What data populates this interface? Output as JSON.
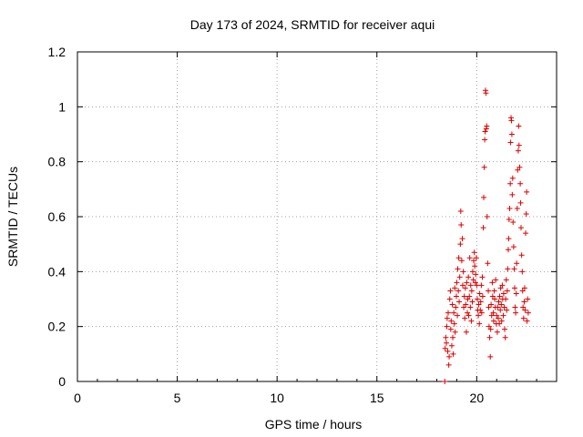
{
  "chart_data": {
    "type": "scatter",
    "title": "Day 173 of 2024, SRMTID for receiver aqui",
    "xlabel": "GPS time / hours",
    "ylabel": "SRMTID / TECUs",
    "xlim": [
      0,
      24
    ],
    "ylim": [
      0,
      1.2
    ],
    "xticks": [
      0,
      5,
      10,
      15,
      20
    ],
    "xtick_labels": [
      "0",
      "5",
      "10",
      "15",
      "20"
    ],
    "yticks": [
      0,
      0.2,
      0.4,
      0.6,
      0.8,
      1.0,
      1.2
    ],
    "ytick_labels": [
      "0",
      "0.2",
      "0.4",
      "0.6",
      "0.8",
      "1",
      "1.2"
    ],
    "grid": true,
    "marker": "plus",
    "color": "#dd0000",
    "series": [
      {
        "name": "SRMTID",
        "points": [
          [
            18.4,
            0.0
          ],
          [
            18.42,
            0.12
          ],
          [
            18.45,
            0.16
          ],
          [
            18.48,
            0.14
          ],
          [
            18.5,
            0.2
          ],
          [
            18.52,
            0.23
          ],
          [
            18.55,
            0.11
          ],
          [
            18.57,
            0.25
          ],
          [
            18.6,
            0.06
          ],
          [
            18.62,
            0.09
          ],
          [
            18.65,
            0.3
          ],
          [
            18.68,
            0.33
          ],
          [
            18.7,
            0.19
          ],
          [
            18.72,
            0.22
          ],
          [
            18.75,
            0.13
          ],
          [
            18.78,
            0.28
          ],
          [
            18.8,
            0.16
          ],
          [
            18.82,
            0.1
          ],
          [
            18.85,
            0.25
          ],
          [
            18.88,
            0.21
          ],
          [
            18.9,
            0.34
          ],
          [
            18.92,
            0.18
          ],
          [
            18.95,
            0.27
          ],
          [
            18.98,
            0.31
          ],
          [
            19.0,
            0.36
          ],
          [
            19.03,
            0.24
          ],
          [
            19.05,
            0.41
          ],
          [
            19.08,
            0.33
          ],
          [
            19.1,
            0.45
          ],
          [
            19.12,
            0.29
          ],
          [
            19.15,
            0.38
          ],
          [
            19.18,
            0.5
          ],
          [
            19.2,
            0.62
          ],
          [
            19.22,
            0.57
          ],
          [
            19.25,
            0.44
          ],
          [
            19.28,
            0.52
          ],
          [
            19.3,
            0.35
          ],
          [
            19.33,
            0.4
          ],
          [
            19.35,
            0.27
          ],
          [
            19.38,
            0.31
          ],
          [
            19.4,
            0.23
          ],
          [
            19.43,
            0.34
          ],
          [
            19.45,
            0.28
          ],
          [
            19.48,
            0.18
          ],
          [
            19.5,
            0.36
          ],
          [
            19.53,
            0.25
          ],
          [
            19.55,
            0.3
          ],
          [
            19.58,
            0.38
          ],
          [
            19.6,
            0.24
          ],
          [
            19.63,
            0.31
          ],
          [
            19.65,
            0.45
          ],
          [
            19.68,
            0.27
          ],
          [
            19.7,
            0.35
          ],
          [
            19.73,
            0.22
          ],
          [
            19.75,
            0.33
          ],
          [
            19.78,
            0.29
          ],
          [
            19.8,
            0.4
          ],
          [
            19.83,
            0.37
          ],
          [
            19.85,
            0.44
          ],
          [
            19.88,
            0.47
          ],
          [
            19.9,
            0.42
          ],
          [
            19.93,
            0.36
          ],
          [
            19.95,
            0.39
          ],
          [
            19.98,
            0.45
          ],
          [
            20.0,
            0.35
          ],
          [
            20.03,
            0.3
          ],
          [
            20.05,
            0.26
          ],
          [
            20.08,
            0.24
          ],
          [
            20.1,
            0.28
          ],
          [
            20.13,
            0.21
          ],
          [
            20.15,
            0.32
          ],
          [
            20.18,
            0.26
          ],
          [
            20.2,
            0.29
          ],
          [
            20.23,
            0.35
          ],
          [
            20.25,
            0.25
          ],
          [
            20.28,
            0.38
          ],
          [
            20.3,
            0.31
          ],
          [
            20.33,
            0.56
          ],
          [
            20.35,
            0.67
          ],
          [
            20.38,
            0.78
          ],
          [
            20.4,
            0.88
          ],
          [
            20.42,
            0.91
          ],
          [
            20.44,
            1.06
          ],
          [
            20.46,
            1.05
          ],
          [
            20.48,
            0.92
          ],
          [
            20.5,
            0.93
          ],
          [
            20.52,
            0.6
          ],
          [
            20.55,
            0.43
          ],
          [
            20.58,
            0.33
          ],
          [
            20.6,
            0.27
          ],
          [
            20.62,
            0.2
          ],
          [
            20.65,
            0.16
          ],
          [
            20.68,
            0.09
          ],
          [
            20.7,
            0.19
          ],
          [
            20.72,
            0.28
          ],
          [
            20.75,
            0.24
          ],
          [
            20.78,
            0.36
          ],
          [
            20.8,
            0.31
          ],
          [
            20.83,
            0.25
          ],
          [
            20.85,
            0.22
          ],
          [
            20.88,
            0.33
          ],
          [
            20.9,
            0.3
          ],
          [
            20.93,
            0.27
          ],
          [
            20.95,
            0.37
          ],
          [
            20.98,
            0.21
          ],
          [
            21.0,
            0.24
          ],
          [
            21.03,
            0.18
          ],
          [
            21.05,
            0.27
          ],
          [
            21.08,
            0.23
          ],
          [
            21.1,
            0.29
          ],
          [
            21.13,
            0.21
          ],
          [
            21.15,
            0.31
          ],
          [
            21.18,
            0.26
          ],
          [
            21.2,
            0.34
          ],
          [
            21.23,
            0.28
          ],
          [
            21.25,
            0.22
          ],
          [
            21.28,
            0.35
          ],
          [
            21.3,
            0.3
          ],
          [
            21.33,
            0.24
          ],
          [
            21.35,
            0.32
          ],
          [
            21.38,
            0.27
          ],
          [
            21.4,
            0.19
          ],
          [
            21.43,
            0.16
          ],
          [
            21.45,
            0.3
          ],
          [
            21.48,
            0.37
          ],
          [
            21.5,
            0.26
          ],
          [
            21.53,
            0.33
          ],
          [
            21.55,
            0.41
          ],
          [
            21.58,
            0.48
          ],
          [
            21.6,
            0.52
          ],
          [
            21.62,
            0.59
          ],
          [
            21.65,
            0.63
          ],
          [
            21.68,
            0.72
          ],
          [
            21.7,
            0.87
          ],
          [
            21.72,
            0.96
          ],
          [
            21.74,
            0.95
          ],
          [
            21.76,
            0.9
          ],
          [
            21.78,
            0.68
          ],
          [
            21.8,
            0.74
          ],
          [
            21.82,
            0.58
          ],
          [
            21.85,
            0.49
          ],
          [
            21.88,
            0.41
          ],
          [
            21.9,
            0.34
          ],
          [
            21.92,
            0.27
          ],
          [
            21.95,
            0.25
          ],
          [
            21.98,
            0.32
          ],
          [
            22.0,
            0.43
          ],
          [
            22.03,
            0.63
          ],
          [
            22.05,
            0.77
          ],
          [
            22.08,
            0.84
          ],
          [
            22.1,
            0.93
          ],
          [
            22.12,
            0.86
          ],
          [
            22.15,
            0.78
          ],
          [
            22.18,
            0.72
          ],
          [
            22.2,
            0.65
          ],
          [
            22.22,
            0.56
          ],
          [
            22.25,
            0.46
          ],
          [
            22.28,
            0.4
          ],
          [
            22.3,
            0.33
          ],
          [
            22.32,
            0.27
          ],
          [
            22.35,
            0.23
          ],
          [
            22.38,
            0.29
          ],
          [
            22.4,
            0.34
          ],
          [
            22.42,
            0.26
          ],
          [
            22.45,
            0.54
          ],
          [
            22.48,
            0.61
          ],
          [
            22.5,
            0.69
          ],
          [
            22.52,
            0.22
          ],
          [
            22.55,
            0.3
          ],
          [
            22.58,
            0.25
          ]
        ]
      }
    ]
  }
}
